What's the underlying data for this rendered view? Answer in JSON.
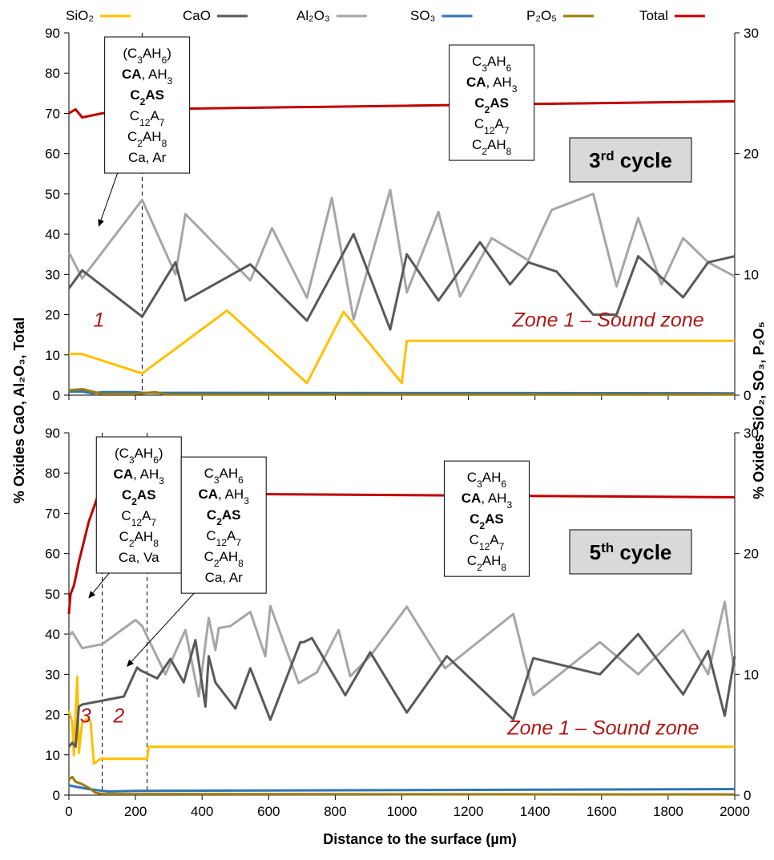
{
  "figure": {
    "x_axis_title": "Distance to the surface (µm)",
    "y_axis_left_title": "% Oxides CaO, Al₂O₃, Total",
    "y_axis_right_title": "% Oxides SiO₂, SO₃, P₂O₅"
  },
  "legend": [
    {
      "key": "SiO2",
      "label": "SiO₂",
      "color": "#ffc000"
    },
    {
      "key": "CaO",
      "label": "CaO",
      "color": "#595959"
    },
    {
      "key": "Al2O3",
      "label": "Al₂O₃",
      "color": "#a6a6a6"
    },
    {
      "key": "SO3",
      "label": "SO₃",
      "color": "#2e75b6"
    },
    {
      "key": "P2O5",
      "label": "P₂O₅",
      "color": "#9c7c0c"
    },
    {
      "key": "Total",
      "label": "Total",
      "color": "#c00000"
    }
  ],
  "chart_data": [
    {
      "type": "line",
      "xlabel": "Distance to the surface (µm)",
      "ylabel_left": "% Oxides CaO, Al₂O₃, Total",
      "ylabel_right": "% Oxides SiO₂, SO₃, P₂O₅",
      "xlim": [
        0,
        2000
      ],
      "ylim_left": [
        0,
        90
      ],
      "ylim_right": [
        0,
        30
      ],
      "x_ticks": [
        "0",
        "200",
        "400",
        "600",
        "800",
        "1000",
        "1200",
        "1400",
        "1600",
        "1800",
        "2000"
      ],
      "y_left_ticks": [
        "0",
        "10",
        "20",
        "30",
        "40",
        "50",
        "60",
        "70",
        "80",
        "90"
      ],
      "y_right_ticks": [
        "0",
        "10",
        "20",
        "30"
      ],
      "grid": false,
      "legend_position": "top",
      "cycle_label": {
        "main": "3",
        "sup": "rd",
        "rest": " cycle"
      },
      "zone_labels": [
        {
          "text": "Zone 1 – Sound zone",
          "x": 1620,
          "y": 17
        },
        {
          "text": "1",
          "x": 90,
          "y": 17
        }
      ],
      "boundaries": [
        220
      ],
      "phase_boxes": [
        {
          "x": 235,
          "y": 89,
          "lines": [
            "(C3AH6)",
            "CA, AH3",
            "C2AS",
            "C12A7",
            "C2AH8",
            "Ca, Ar"
          ],
          "arrow_to": [
            90,
            42
          ]
        },
        {
          "x": 1270,
          "y": 87,
          "lines": [
            "C3AH6",
            "CA, AH3",
            "C2AS",
            "C12A7",
            "C2AH8"
          ],
          "arrow_to": null
        }
      ],
      "series": [
        {
          "name": "SiO₂",
          "axis": "right",
          "x": [
            0,
            40,
            220,
            475,
            715,
            825,
            1000,
            1015,
            2000
          ],
          "values": [
            3.4,
            3.4,
            1.8,
            7,
            1,
            6.9,
            1,
            4.5,
            4.5
          ]
        },
        {
          "name": "CaO",
          "axis": "left",
          "x": [
            0,
            40,
            220,
            320,
            350,
            545,
            715,
            855,
            965,
            1015,
            1110,
            1235,
            1325,
            1380,
            1465,
            1575,
            1645,
            1710,
            1845,
            1920,
            2000
          ],
          "values": [
            26.5,
            31,
            19.5,
            33,
            23.5,
            32.5,
            18.5,
            40,
            16.3,
            35,
            23.5,
            38,
            27.5,
            33,
            30.7,
            20,
            20,
            34.5,
            24.3,
            33,
            34.5
          ]
        },
        {
          "name": "Al₂O₃",
          "axis": "left",
          "x": [
            0,
            40,
            220,
            320,
            350,
            545,
            610,
            715,
            790,
            855,
            965,
            1015,
            1110,
            1175,
            1270,
            1380,
            1450,
            1575,
            1645,
            1710,
            1780,
            1845,
            1920,
            2000
          ],
          "values": [
            35.5,
            29,
            48.5,
            30,
            45,
            28.5,
            41.5,
            24.2,
            49,
            18.8,
            51,
            25.5,
            45.5,
            24.5,
            39,
            33.5,
            46,
            50,
            27,
            44,
            27.5,
            39,
            33,
            29.5
          ]
        },
        {
          "name": "SO₃",
          "axis": "right",
          "x": [
            0,
            40,
            70,
            100,
            200,
            220,
            2000
          ],
          "values": [
            0.3,
            0.3,
            0.15,
            0.25,
            0.25,
            0.2,
            0.15
          ]
        },
        {
          "name": "P₂O₅",
          "axis": "right",
          "x": [
            0,
            40,
            100,
            200,
            260,
            290,
            2000
          ],
          "values": [
            0.4,
            0.5,
            0.1,
            0.1,
            0.25,
            0.05,
            0.05
          ]
        },
        {
          "name": "Total",
          "axis": "left",
          "x": [
            0,
            20,
            40,
            100,
            200,
            2000
          ],
          "values": [
            70,
            71,
            69,
            70,
            71,
            73
          ]
        }
      ]
    },
    {
      "type": "line",
      "xlabel": "Distance to the surface (µm)",
      "ylabel_left": "% Oxides CaO, Al₂O₃, Total",
      "ylabel_right": "% Oxides SiO₂, SO₃, P₂O₅",
      "xlim": [
        0,
        2000
      ],
      "ylim_left": [
        0,
        90
      ],
      "ylim_right": [
        0,
        30
      ],
      "x_ticks": [
        "0",
        "200",
        "400",
        "600",
        "800",
        "1000",
        "1200",
        "1400",
        "1600",
        "1800",
        "2000"
      ],
      "y_left_ticks": [
        "0",
        "10",
        "20",
        "30",
        "40",
        "50",
        "60",
        "70",
        "80",
        "90"
      ],
      "y_right_ticks": [
        "0",
        "10",
        "20",
        "30"
      ],
      "grid": false,
      "legend_position": "top",
      "cycle_label": {
        "main": "5",
        "sup": "th",
        "rest": " cycle"
      },
      "zone_labels": [
        {
          "text": "Zone 1 – Sound zone",
          "x": 1605,
          "y": 15
        },
        {
          "text": "3",
          "x": 50,
          "y": 18
        },
        {
          "text": "2",
          "x": 150,
          "y": 18
        }
      ],
      "boundaries": [
        100,
        235
      ],
      "phase_boxes": [
        {
          "x": 210,
          "y": 89,
          "lines": [
            "(C3AH6)",
            "CA, AH3",
            "C2AS",
            "C12A7",
            "C2AH8",
            "Ca, Va"
          ],
          "arrow_to": [
            60,
            49
          ]
        },
        {
          "x": 465,
          "y": 84,
          "lines": [
            "C3AH6",
            "CA, AH3",
            "C2AS",
            "C12A7",
            "C2AH8",
            "Ca, Ar"
          ],
          "arrow_to": [
            175,
            32
          ]
        },
        {
          "x": 1255,
          "y": 83,
          "lines": [
            "C3AH6",
            "CA, AH3",
            "C2AS",
            "C12A7",
            "C2AH8"
          ],
          "arrow_to": null
        }
      ],
      "series": [
        {
          "name": "SiO₂",
          "axis": "right",
          "x": [
            0,
            10,
            15,
            25,
            30,
            40,
            55,
            65,
            75,
            95,
            100,
            235,
            240,
            2000
          ],
          "values": [
            7,
            6,
            3.3,
            9.8,
            3.5,
            6,
            6.3,
            6.1,
            2.6,
            3,
            3,
            3,
            4,
            4
          ]
        },
        {
          "name": "CaO",
          "axis": "left",
          "x": [
            0,
            10,
            20,
            30,
            40,
            165,
            205,
            215,
            265,
            305,
            345,
            380,
            410,
            420,
            440,
            500,
            545,
            605,
            695,
            705,
            730,
            830,
            905,
            1015,
            1135,
            1335,
            1395,
            1595,
            1710,
            1845,
            1920,
            1970,
            2000
          ],
          "values": [
            12,
            13,
            12,
            22,
            22.5,
            24.5,
            31.7,
            31,
            29,
            33.8,
            28,
            38.5,
            22,
            34.5,
            28,
            21.5,
            31.5,
            18.7,
            38,
            38,
            39,
            24.8,
            35.5,
            20.5,
            34.5,
            18.8,
            34,
            30,
            40,
            25,
            35.8,
            19.7,
            34.5
          ]
        },
        {
          "name": "Al₂O₃",
          "axis": "left",
          "x": [
            0,
            10,
            40,
            100,
            200,
            220,
            290,
            350,
            390,
            420,
            440,
            450,
            485,
            545,
            590,
            605,
            690,
            745,
            810,
            845,
            905,
            1015,
            1130,
            1335,
            1395,
            1595,
            1710,
            1845,
            1920,
            1970,
            2000
          ],
          "values": [
            39.5,
            40.5,
            36.5,
            37.5,
            43.5,
            42,
            30,
            41,
            24.5,
            44,
            36,
            41.5,
            42,
            45.5,
            34.5,
            47,
            27.8,
            30.5,
            41,
            29.5,
            34.5,
            46.8,
            31.5,
            45,
            24.8,
            38,
            30,
            41,
            30,
            48,
            30
          ]
        },
        {
          "name": "SO₃",
          "axis": "right",
          "x": [
            0,
            20,
            40,
            60,
            100,
            120,
            200,
            2000
          ],
          "values": [
            0.8,
            0.7,
            0.6,
            0.5,
            0.35,
            0.3,
            0.35,
            0.5
          ]
        },
        {
          "name": "P₂O₅",
          "axis": "right",
          "x": [
            0,
            10,
            20,
            40,
            60,
            80,
            100,
            2000
          ],
          "values": [
            1.3,
            1.5,
            1.1,
            0.9,
            0.6,
            0.2,
            0.1,
            0.05
          ]
        },
        {
          "name": "Total",
          "axis": "left",
          "x": [
            0,
            5,
            15,
            30,
            45,
            60,
            90,
            100,
            110,
            2000
          ],
          "values": [
            45,
            50,
            52,
            58,
            63,
            68,
            75,
            75,
            75,
            74
          ]
        }
      ]
    }
  ]
}
